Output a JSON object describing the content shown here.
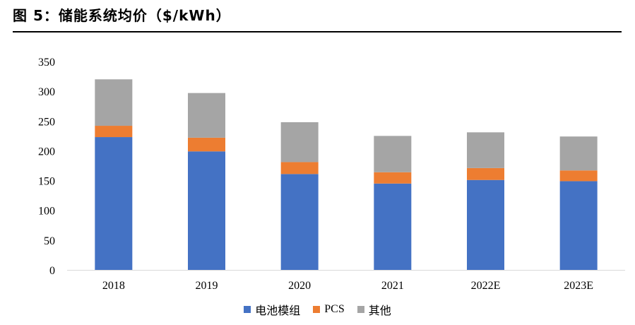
{
  "header": {
    "title": "图 5：储能系统均价（$/kWh）"
  },
  "colors": {
    "battery": "#4472C4",
    "pcs": "#ED7D31",
    "other": "#A5A5A5",
    "axis": "#D9D9D9"
  },
  "chart_data": {
    "type": "bar",
    "stacked": true,
    "title": "储能系统均价（$/kWh）",
    "categories": [
      "2018",
      "2019",
      "2020",
      "2021",
      "2022E",
      "2023E"
    ],
    "series": [
      {
        "name": "电池模组",
        "values": [
          223,
          199,
          161,
          145,
          151,
          149
        ]
      },
      {
        "name": "PCS",
        "values": [
          19,
          23,
          20,
          19,
          20,
          18
        ]
      },
      {
        "name": "其他",
        "values": [
          78,
          75,
          67,
          61,
          60,
          57
        ]
      }
    ],
    "ylim": [
      0,
      350
    ],
    "yticks": [
      0,
      50,
      100,
      150,
      200,
      250,
      300,
      350
    ],
    "xlabel": "",
    "ylabel": "",
    "legend": "bottom"
  }
}
